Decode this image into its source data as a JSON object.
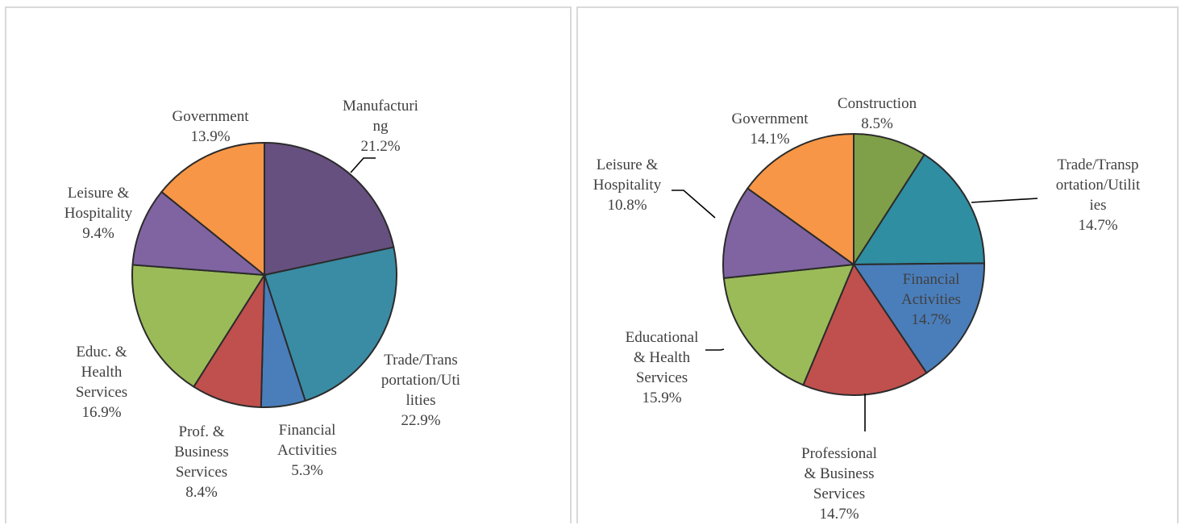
{
  "chart_data": [
    {
      "type": "pie",
      "start_angle_deg": 0,
      "direction": "clockwise",
      "slices": [
        {
          "lines": [
            "Manufacturi",
            "ng",
            "21.2%"
          ],
          "value": 21.2,
          "color": "#66507f"
        },
        {
          "lines": [
            "Trade/Trans",
            "portation/Uti",
            "lities",
            "22.9%"
          ],
          "value": 22.9,
          "color": "#3a8ca4"
        },
        {
          "lines": [
            "Financial",
            "Activities",
            "5.3%"
          ],
          "value": 5.3,
          "color": "#4a7ebb"
        },
        {
          "lines": [
            "Prof. &",
            "Business",
            "Services",
            "8.4%"
          ],
          "value": 8.4,
          "color": "#c0504d"
        },
        {
          "lines": [
            "Educ. &",
            "Health",
            "Services",
            "16.9%"
          ],
          "value": 16.9,
          "color": "#9bbb59"
        },
        {
          "lines": [
            "Leisure &",
            "Hospitality",
            "9.4%"
          ],
          "value": 9.4,
          "color": "#8064a2"
        },
        {
          "lines": [
            "Government",
            "13.9%"
          ],
          "value": 13.9,
          "color": "#f79646"
        }
      ]
    },
    {
      "type": "pie",
      "start_angle_deg": 0,
      "direction": "clockwise",
      "slices": [
        {
          "lines": [
            "Construction",
            "8.5%"
          ],
          "value": 8.5,
          "color": "#7f9f48"
        },
        {
          "lines": [
            "Trade/Transp",
            "ortation/Utilit",
            "ies",
            "14.7%"
          ],
          "value": 14.7,
          "color": "#2f8ea2"
        },
        {
          "lines": [
            "Financial",
            "Activities",
            "14.7%"
          ],
          "value": 14.7,
          "color": "#4a7ebb"
        },
        {
          "lines": [
            "Professional",
            "& Business",
            "Services",
            "14.7%"
          ],
          "value": 14.7,
          "color": "#c0504d"
        },
        {
          "lines": [
            "Educational",
            "& Health",
            "Services",
            "15.9%"
          ],
          "value": 15.9,
          "color": "#9bbb59"
        },
        {
          "lines": [
            "Leisure &",
            "Hospitality",
            "10.8%"
          ],
          "value": 10.8,
          "color": "#8064a2"
        },
        {
          "lines": [
            "Government",
            "14.1%"
          ],
          "value": 14.1,
          "color": "#f79646"
        }
      ]
    }
  ]
}
